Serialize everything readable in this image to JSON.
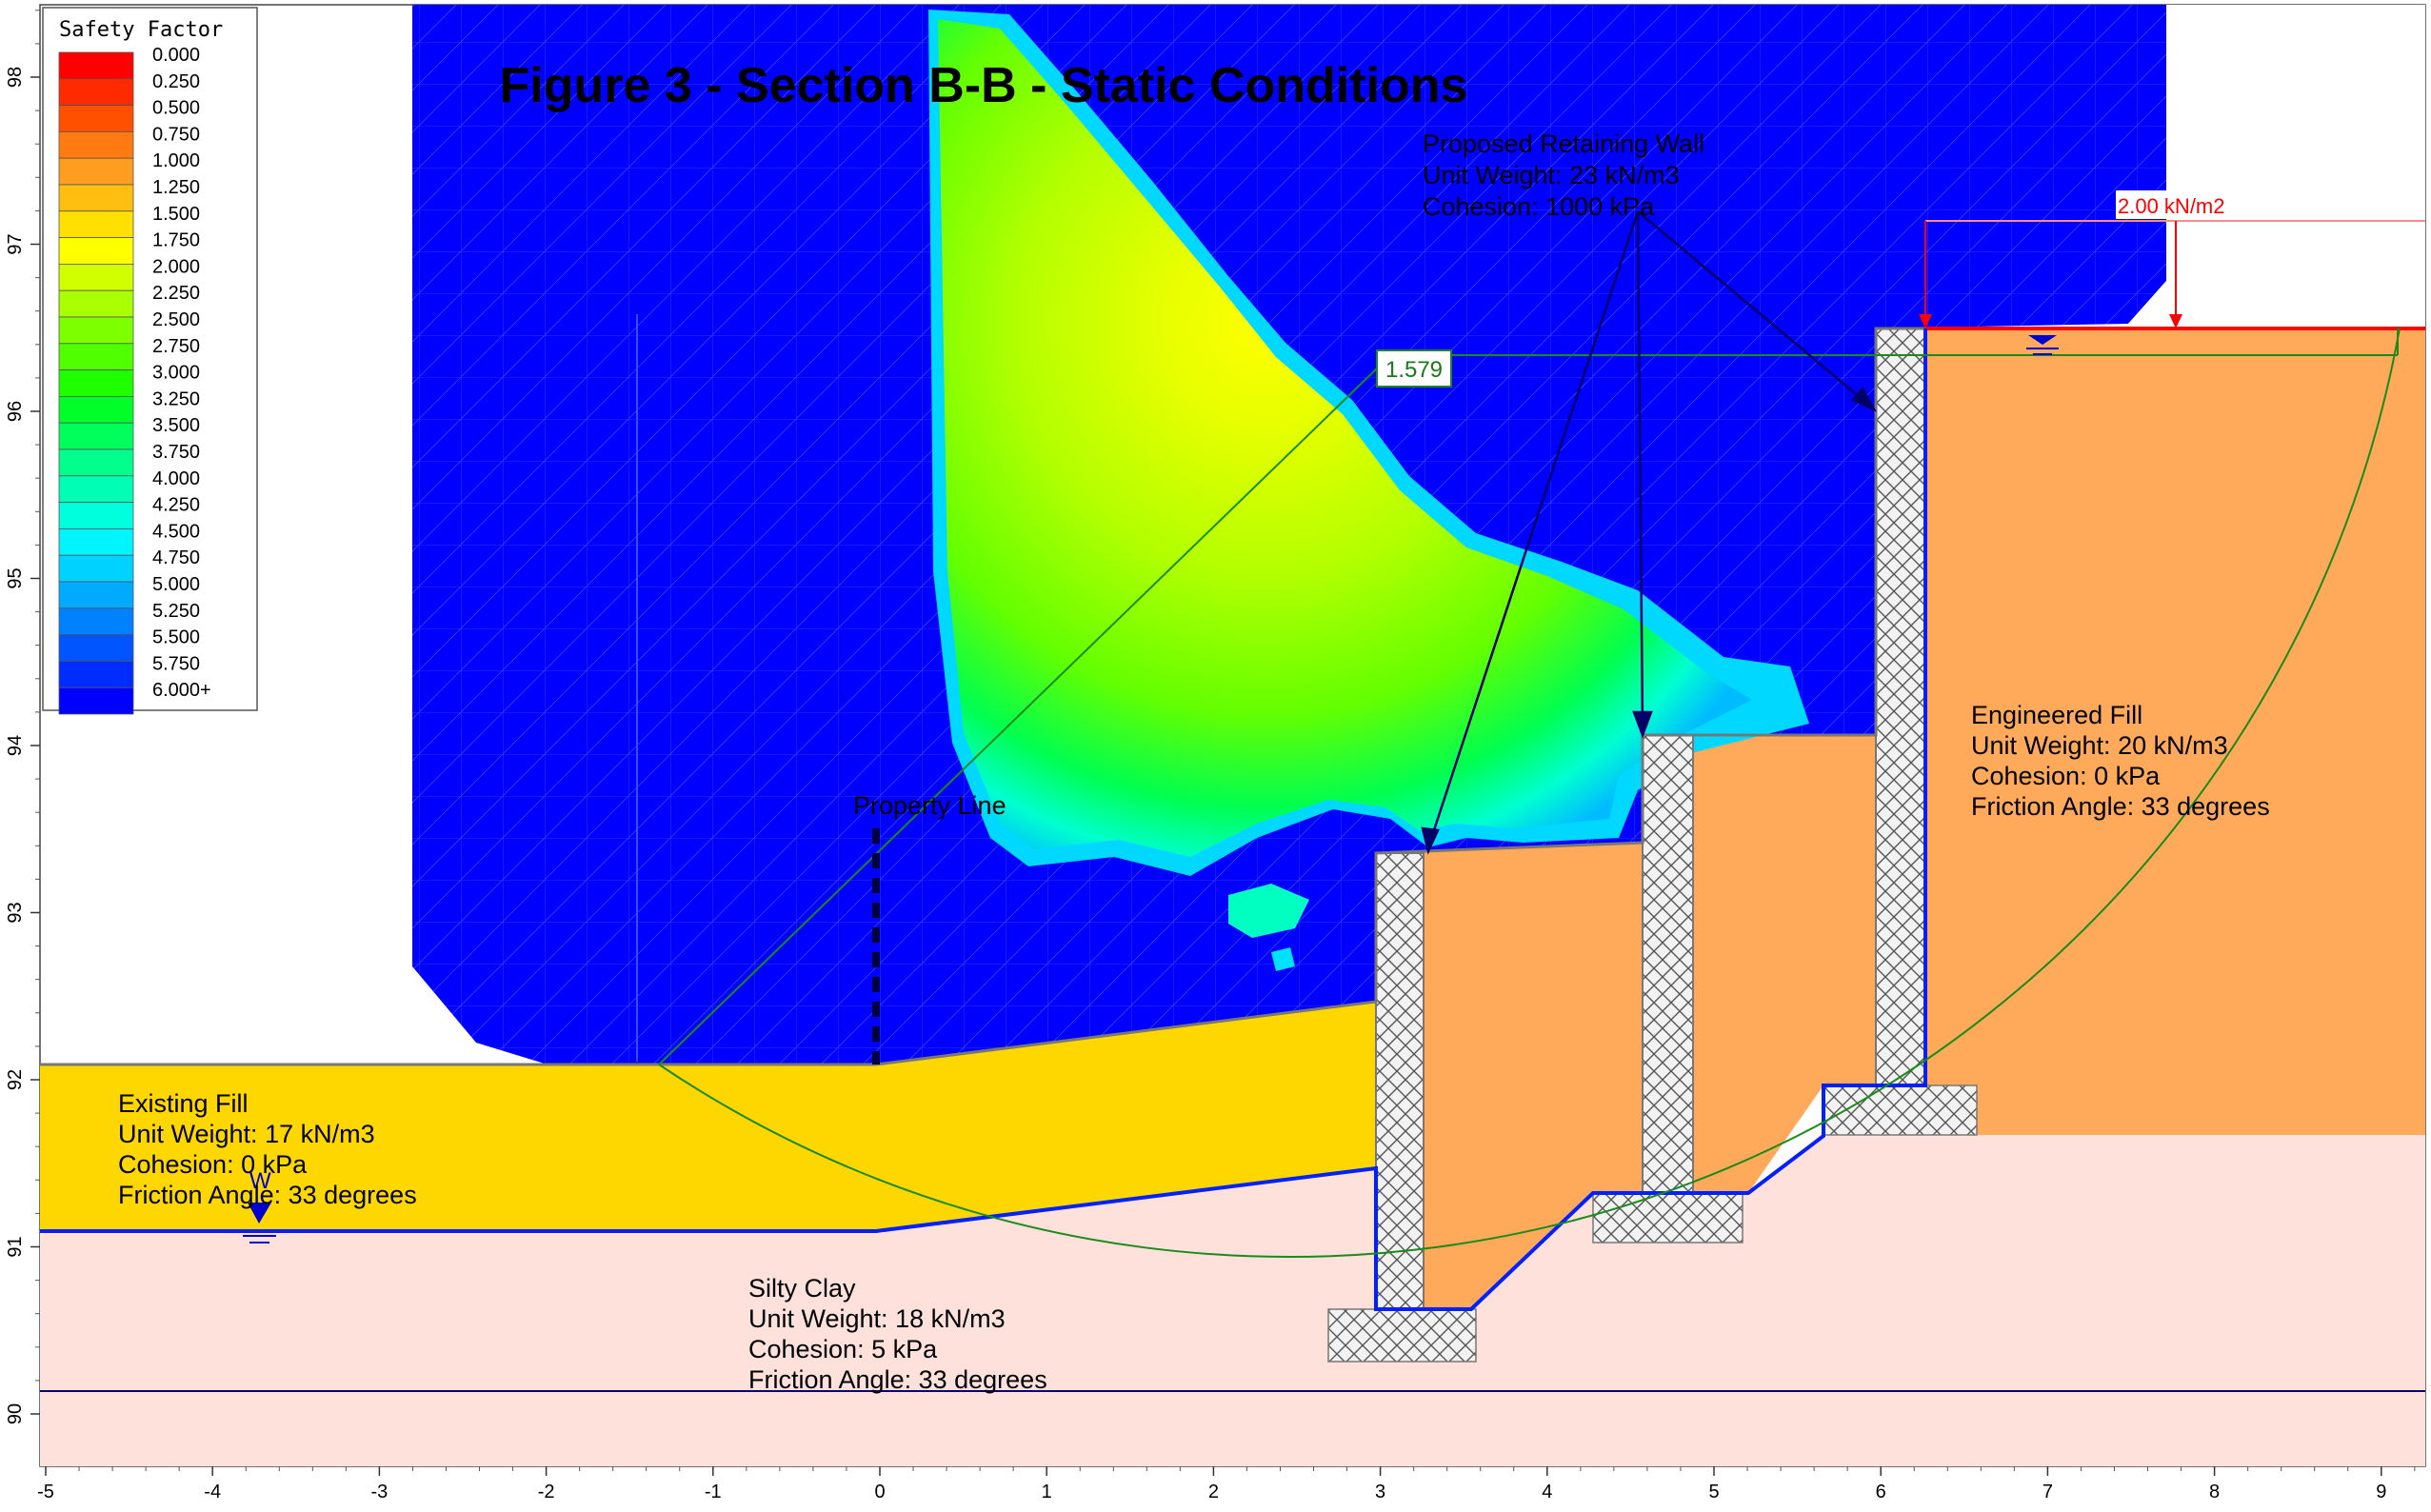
{
  "figure": {
    "title": "Figure 3 - Section B-B - Static Conditions",
    "factor_of_safety": "1.579",
    "load_label": "2.00 kN/m2",
    "property_line_label": "Property Line",
    "water_symbol": "W"
  },
  "legend": {
    "title": "Safety Factor",
    "items": [
      {
        "label": "0.000",
        "color": "#ff0000"
      },
      {
        "label": "0.250",
        "color": "#ff2a00"
      },
      {
        "label": "0.500",
        "color": "#ff5000"
      },
      {
        "label": "0.750",
        "color": "#ff7a10"
      },
      {
        "label": "1.000",
        "color": "#ff9d20"
      },
      {
        "label": "1.250",
        "color": "#ffbe10"
      },
      {
        "label": "1.500",
        "color": "#ffe000"
      },
      {
        "label": "1.750",
        "color": "#ffff00"
      },
      {
        "label": "2.000",
        "color": "#d2ff00"
      },
      {
        "label": "2.250",
        "color": "#aaff00"
      },
      {
        "label": "2.500",
        "color": "#7dff00"
      },
      {
        "label": "2.750",
        "color": "#50ff00"
      },
      {
        "label": "3.000",
        "color": "#1eff00"
      },
      {
        "label": "3.250",
        "color": "#00ff28"
      },
      {
        "label": "3.500",
        "color": "#00ff5a"
      },
      {
        "label": "3.750",
        "color": "#00ff8c"
      },
      {
        "label": "4.000",
        "color": "#00ffb4"
      },
      {
        "label": "4.250",
        "color": "#00ffdc"
      },
      {
        "label": "4.500",
        "color": "#00f5ff"
      },
      {
        "label": "4.750",
        "color": "#00d2ff"
      },
      {
        "label": "5.000",
        "color": "#00aaff"
      },
      {
        "label": "5.250",
        "color": "#0082ff"
      },
      {
        "label": "5.500",
        "color": "#0055ff"
      },
      {
        "label": "5.750",
        "color": "#002dff"
      },
      {
        "label": "6.000+",
        "color": "#0000ff"
      }
    ]
  },
  "materials": {
    "retaining_wall": {
      "name": "Proposed Retaining Wall",
      "unit_weight": "Unit Weight: 23 kN/m3",
      "cohesion": "Cohesion: 1000 kPa"
    },
    "engineered_fill": {
      "name": "Engineered Fill",
      "unit_weight": "Unit Weight: 20 kN/m3",
      "cohesion": "Cohesion: 0 kPa",
      "friction": "Friction Angle: 33 degrees",
      "color": "#ffaa5a"
    },
    "existing_fill": {
      "name": "Existing Fill",
      "unit_weight": "Unit Weight: 17 kN/m3",
      "cohesion": "Cohesion: 0 kPa",
      "friction": "Friction Angle: 33 degrees",
      "color": "#ffd700"
    },
    "silty_clay": {
      "name": "Silty Clay",
      "unit_weight": "Unit Weight: 18 kN/m3",
      "cohesion": "Cohesion: 5 kPa",
      "friction": "Friction Angle: 33 degrees",
      "color": "#ffe1dc"
    }
  },
  "axes": {
    "x_ticks": [
      "-5",
      "-4",
      "-3",
      "-2",
      "-1",
      "0",
      "1",
      "2",
      "3",
      "4",
      "5",
      "6",
      "7",
      "8",
      "9"
    ],
    "y_ticks": [
      "90",
      "91",
      "92",
      "93",
      "94",
      "95",
      "96",
      "97",
      "98"
    ],
    "x_range": [
      -5,
      9.3
    ],
    "y_range": [
      89.75,
      98.4
    ]
  }
}
